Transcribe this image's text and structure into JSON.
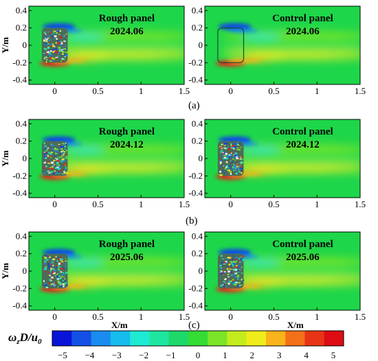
{
  "chart_data": [
    {
      "type": "heatmap",
      "id": "a-rough",
      "title": [
        "Rough panel",
        "2024.06"
      ],
      "xlabel": "",
      "ylabel": "Y/m",
      "xticks": [
        "0",
        "0.5",
        "1",
        "1.5"
      ],
      "yticks": [
        "0.4",
        "0.2",
        "0",
        "-0.2",
        "-0.4"
      ],
      "xlim": [
        -0.3,
        1.5
      ],
      "ylim": [
        -0.45,
        0.45
      ],
      "body": "rough",
      "strength": 0.9
    },
    {
      "type": "heatmap",
      "id": "a-control",
      "title": [
        "Control panel",
        "2024.06"
      ],
      "xlabel": "",
      "ylabel": "",
      "xticks": [
        "0",
        "0.5",
        "1",
        "1.5"
      ],
      "yticks": [
        "0.4",
        "0.2",
        "0",
        "-0.2",
        "-0.4"
      ],
      "xlim": [
        -0.3,
        1.5
      ],
      "ylim": [
        -0.45,
        0.45
      ],
      "body": "smooth",
      "strength": 1.0
    },
    {
      "type": "heatmap",
      "id": "b-rough",
      "title": [
        "Rough panel",
        "2024.12"
      ],
      "xlabel": "",
      "ylabel": "Y/m",
      "xticks": [
        "0",
        "0.5",
        "1",
        "1.5"
      ],
      "yticks": [
        "0.4",
        "0.2",
        "0",
        "-0.2",
        "-0.4"
      ],
      "xlim": [
        -0.3,
        1.5
      ],
      "ylim": [
        -0.45,
        0.45
      ],
      "body": "rough",
      "strength": 0.9
    },
    {
      "type": "heatmap",
      "id": "b-control",
      "title": [
        "Control panel",
        "2024.12"
      ],
      "xlabel": "",
      "ylabel": "",
      "xticks": [
        "0",
        "0.5",
        "1",
        "1.5"
      ],
      "yticks": [
        "0.4",
        "0.2",
        "0",
        "-0.2",
        "-0.4"
      ],
      "xlim": [
        -0.3,
        1.5
      ],
      "ylim": [
        -0.45,
        0.45
      ],
      "body": "rough",
      "strength": 0.9
    },
    {
      "type": "heatmap",
      "id": "c-rough",
      "title": [
        "Rough panel",
        "2025.06"
      ],
      "xlabel": "X/m",
      "ylabel": "Y/m",
      "xticks": [
        "0",
        "0.5",
        "1",
        "1.5"
      ],
      "yticks": [
        "0.4",
        "0.2",
        "0",
        "-0.2",
        "-0.4"
      ],
      "xlim": [
        -0.3,
        1.5
      ],
      "ylim": [
        -0.45,
        0.45
      ],
      "body": "rough",
      "strength": 0.9
    },
    {
      "type": "heatmap",
      "id": "c-control",
      "title": [
        "Control panel",
        "2025.06"
      ],
      "xlabel": "X/m",
      "ylabel": "",
      "xticks": [
        "0",
        "0.5",
        "1",
        "1.5"
      ],
      "yticks": [
        "0.4",
        "0.2",
        "0",
        "-0.2",
        "-0.4"
      ],
      "xlim": [
        -0.3,
        1.5
      ],
      "ylim": [
        -0.45,
        0.45
      ],
      "body": "rough",
      "strength": 0.9
    }
  ],
  "subfigure_labels": [
    "(a)",
    "(b)",
    "(c)"
  ],
  "colorbar": {
    "title": "ωzD/u0",
    "ticks": [
      "−5",
      "−4",
      "−3",
      "−2",
      "−1",
      "0",
      "1",
      "2",
      "3",
      "4",
      "5"
    ],
    "colors": [
      "#0a14d8",
      "#1450e6",
      "#1a8cf0",
      "#16bcec",
      "#1eead4",
      "#1ee6a0",
      "#1ed86a",
      "#34dc34",
      "#7ae428",
      "#c4ec1c",
      "#f0ec1a",
      "#f8b41a",
      "#f47018",
      "#e83416",
      "#dc0c12"
    ]
  },
  "colors": {
    "field": "#1ed64a",
    "blue_vortex": "#1046e0",
    "red_vortex": "#e4201a",
    "yellow_wake": "#f0ec28"
  }
}
